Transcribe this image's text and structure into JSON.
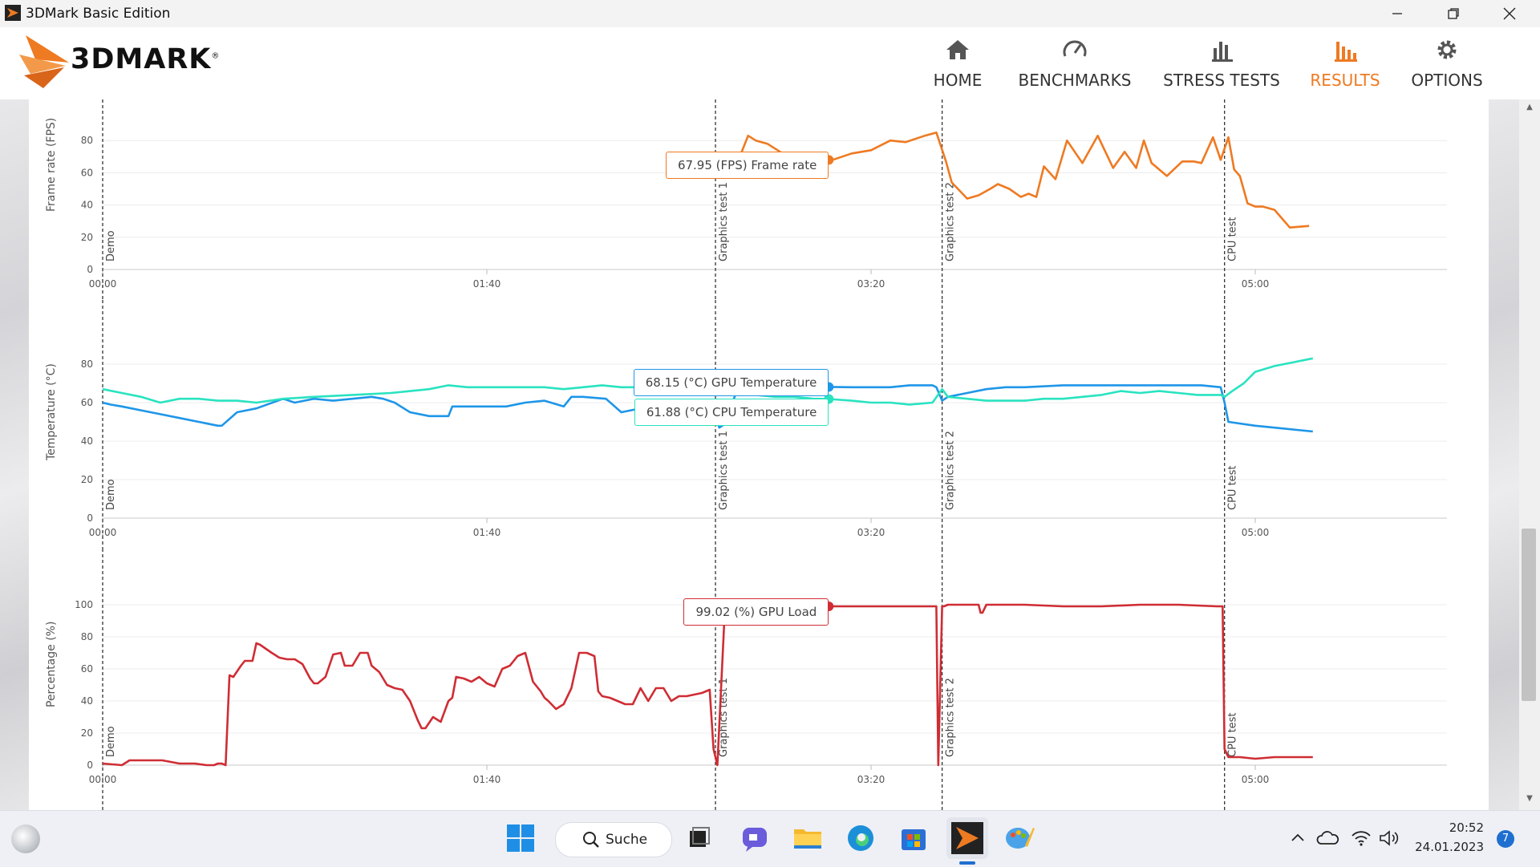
{
  "window": {
    "title": "3DMark Basic Edition",
    "minimize_icon": "minimize-icon",
    "maximize_icon": "restore-icon",
    "close_icon": "close-icon"
  },
  "brand": {
    "name": "3DMARK",
    "registered": "®",
    "accent": "#ee7a22"
  },
  "nav": [
    {
      "label": "HOME",
      "icon": "home-icon",
      "active": false
    },
    {
      "label": "BENCHMARKS",
      "icon": "gauge-icon",
      "active": false
    },
    {
      "label": "STRESS TESTS",
      "icon": "bar-chart-icon",
      "active": false
    },
    {
      "label": "RESULTS",
      "icon": "results-icon",
      "active": true
    },
    {
      "label": "OPTIONS",
      "icon": "gear-icon",
      "active": false
    }
  ],
  "chart_data": [
    {
      "type": "line",
      "ylabel": "Frame rate (FPS)",
      "ylim": [
        0,
        85
      ],
      "yticks": [
        0,
        20,
        40,
        60,
        80
      ],
      "xlim": [
        0,
        350
      ],
      "xticks": [
        0,
        100,
        200,
        300
      ],
      "xtick_labels": [
        "00:00",
        "01:40",
        "03:20",
        "05:00"
      ],
      "markers": [
        {
          "t": 0,
          "label": "Demo"
        },
        {
          "t": 159.5,
          "label": "Graphics test 1"
        },
        {
          "t": 218.5,
          "label": "Graphics test 2"
        },
        {
          "t": 292,
          "label": "CPU test"
        }
      ],
      "series": [
        {
          "name": "Frame rate",
          "color": "#ee7a22",
          "x": [
            160,
            162,
            165,
            168,
            170,
            173,
            177,
            180,
            183,
            186,
            190,
            195,
            200,
            205,
            209,
            214,
            217,
            219.5,
            221,
            223,
            225,
            228,
            231,
            233,
            236,
            239,
            241,
            243,
            245,
            248,
            251,
            255,
            259,
            263,
            266,
            269,
            271,
            273,
            277,
            281,
            284,
            286,
            289,
            291,
            293,
            294.5,
            296,
            298,
            300,
            302,
            305,
            309,
            314
          ],
          "y": [
            70,
            67,
            65,
            83,
            80,
            78,
            72,
            68,
            68,
            68,
            68,
            72,
            74,
            80,
            79,
            83,
            85,
            67,
            54,
            49,
            44,
            46,
            50,
            53,
            50,
            45,
            47,
            45,
            64,
            56,
            80,
            66,
            83,
            63,
            73,
            63,
            80,
            66,
            58,
            67,
            67,
            66,
            82,
            68,
            82,
            62,
            58,
            41,
            39,
            39,
            37,
            26,
            27
          ]
        }
      ],
      "tooltips": [
        {
          "text": "67.95 (FPS) Frame rate",
          "t": 189,
          "value": 67.95,
          "color": "#ee7a22"
        }
      ]
    },
    {
      "type": "line",
      "ylabel": "Temperature (°C)",
      "ylim": [
        0,
        88
      ],
      "yticks": [
        0,
        20,
        40,
        60,
        80
      ],
      "xlim": [
        0,
        350
      ],
      "xticks": [
        0,
        100,
        200,
        300
      ],
      "xtick_labels": [
        "00:00",
        "01:40",
        "03:20",
        "05:00"
      ],
      "markers": [
        {
          "t": 0,
          "label": "Demo"
        },
        {
          "t": 159.5,
          "label": "Graphics test 1"
        },
        {
          "t": 218.5,
          "label": "Graphics test 2"
        },
        {
          "t": 292,
          "label": "CPU test"
        }
      ],
      "series": [
        {
          "name": "GPU Temperature",
          "color": "#1e96e8",
          "x": [
            0,
            2,
            5,
            10,
            15,
            20,
            25,
            30,
            31,
            35,
            40,
            47,
            50,
            55,
            60,
            65,
            70,
            73,
            76,
            80,
            85,
            90,
            91,
            100,
            105,
            110,
            115,
            120,
            122,
            125,
            131,
            135,
            140,
            145,
            150,
            155,
            158,
            160,
            160.5,
            162,
            165,
            170,
            175,
            180,
            185,
            189,
            195,
            200,
            205,
            210,
            216,
            217,
            218.5,
            220,
            225,
            230,
            235,
            240,
            250,
            260,
            270,
            280,
            286,
            291,
            292,
            293,
            300,
            305,
            315
          ],
          "y": [
            60,
            59,
            58,
            56,
            54,
            52,
            50,
            48,
            48,
            55,
            57,
            62,
            60,
            62,
            61,
            62,
            63,
            62,
            60,
            55,
            53,
            53,
            58,
            58,
            58,
            60,
            61,
            58,
            63,
            63,
            62,
            55,
            57,
            55,
            59,
            60,
            60,
            50,
            47,
            49,
            66,
            67,
            68,
            68,
            68,
            68.15,
            68,
            68,
            68,
            69,
            69,
            68,
            61,
            63,
            65,
            67,
            68,
            68,
            69,
            69,
            69,
            69,
            69,
            68,
            60,
            50,
            48,
            47,
            45
          ]
        },
        {
          "name": "CPU Temperature",
          "color": "#29e3c0",
          "x": [
            0,
            5,
            10,
            15,
            20,
            25,
            30,
            35,
            40,
            47,
            55,
            65,
            75,
            85,
            90,
            95,
            100,
            105,
            110,
            115,
            120,
            125,
            130,
            135,
            140,
            145,
            150,
            155,
            160,
            165,
            170,
            175,
            180,
            185,
            189,
            195,
            200,
            205,
            210,
            216,
            218.5,
            220,
            225,
            230,
            235,
            240,
            245,
            250,
            255,
            260,
            265,
            270,
            275,
            280,
            285,
            291,
            292,
            294,
            297,
            300,
            305,
            310,
            315
          ],
          "y": [
            67,
            65,
            63,
            60,
            62,
            62,
            61,
            61,
            60,
            62,
            63,
            64,
            65,
            67,
            69,
            68,
            68,
            68,
            68,
            68,
            67,
            68,
            69,
            68,
            68,
            68,
            67,
            66,
            67,
            66,
            64,
            63,
            63,
            62,
            61.88,
            61,
            60,
            60,
            59,
            60,
            67,
            63,
            62,
            61,
            61,
            61,
            62,
            62,
            63,
            64,
            66,
            65,
            66,
            65,
            64,
            64,
            63,
            66,
            70,
            76,
            79,
            81,
            83
          ]
        }
      ],
      "tooltips": [
        {
          "text": "68.15 (°C) GPU Temperature",
          "t": 189,
          "value": 68.15,
          "color": "#1e96e8"
        },
        {
          "text": "61.88 (°C) CPU Temperature",
          "t": 189,
          "value": 61.88,
          "color": "#29e3c0"
        }
      ]
    },
    {
      "type": "line",
      "ylabel": "Percentage (%)",
      "ylim": [
        0,
        104
      ],
      "yticks": [
        0,
        20,
        40,
        60,
        80,
        100
      ],
      "xlim": [
        0,
        350
      ],
      "xticks": [
        0,
        100,
        200,
        300
      ],
      "xtick_labels": [
        "00:00",
        "01:40",
        "03:20",
        "05:00"
      ],
      "markers": [
        {
          "t": 0,
          "label": "Demo"
        },
        {
          "t": 159.5,
          "label": "Graphics test 1"
        },
        {
          "t": 218.5,
          "label": "Graphics test 2"
        },
        {
          "t": 292,
          "label": "CPU test"
        }
      ],
      "series": [
        {
          "name": "GPU Load",
          "color": "#cf2d34",
          "x": [
            0,
            5,
            7,
            15,
            15.5,
            20,
            24,
            27,
            29,
            30,
            31,
            32,
            33,
            34,
            36,
            37,
            39,
            40,
            41,
            44,
            46,
            48,
            50,
            52,
            54,
            55,
            56,
            58,
            60,
            62,
            63,
            65,
            67,
            69,
            70,
            72,
            74,
            76,
            78,
            80,
            82,
            83,
            84,
            86,
            88,
            90,
            91,
            92,
            94,
            96,
            98,
            100,
            102,
            104,
            106,
            108,
            110,
            112,
            114,
            115,
            116,
            118,
            120,
            122,
            124,
            126,
            128,
            129,
            130,
            132,
            134,
            136,
            138,
            140,
            142,
            144,
            146,
            148,
            150,
            152,
            154,
            156,
            158,
            159,
            160,
            162,
            164,
            166,
            189,
            217,
            217.5,
            218.5,
            219,
            220,
            225,
            228,
            228.5,
            229,
            230,
            240,
            250,
            260,
            270,
            280,
            290,
            291,
            291.5,
            292,
            293,
            296,
            300,
            305,
            310,
            315
          ],
          "y": [
            1,
            0,
            3,
            3,
            3,
            1,
            1,
            0,
            0,
            1,
            1,
            0,
            56,
            55,
            62,
            65,
            65,
            76,
            75,
            70,
            67,
            66,
            66,
            63,
            54,
            51,
            51,
            55,
            69,
            70,
            62,
            62,
            70,
            70,
            62,
            58,
            50,
            48,
            47,
            40,
            28,
            23,
            23,
            30,
            27,
            40,
            42,
            55,
            54,
            52,
            55,
            51,
            49,
            60,
            62,
            68,
            70,
            52,
            46,
            42,
            40,
            35,
            38,
            48,
            70,
            70,
            68,
            46,
            43,
            42,
            40,
            38,
            38,
            48,
            40,
            48,
            48,
            40,
            43,
            43,
            44,
            45,
            47,
            10,
            0,
            100,
            99,
            99,
            99.02,
            99,
            0,
            99,
            99,
            100,
            100,
            100,
            95,
            95,
            100,
            100,
            99,
            99,
            100,
            100,
            99,
            99,
            99,
            10,
            5,
            5,
            4,
            5,
            5,
            5
          ]
        }
      ],
      "tooltips": [
        {
          "text": "99.02 (%) GPU Load",
          "t": 189,
          "value": 99.02,
          "color": "#cf2d34"
        }
      ]
    }
  ],
  "taskbar": {
    "search_label": "Suche",
    "icons": [
      "windows-start-icon",
      "search-icon",
      "task-view-icon",
      "teams-chat-icon",
      "file-explorer-icon",
      "edge-icon",
      "microsoft-store-icon",
      "3dmark-icon",
      "paint-icon"
    ],
    "tray": {
      "time": "20:52",
      "date": "24.01.2023",
      "notification_count": "7"
    }
  }
}
